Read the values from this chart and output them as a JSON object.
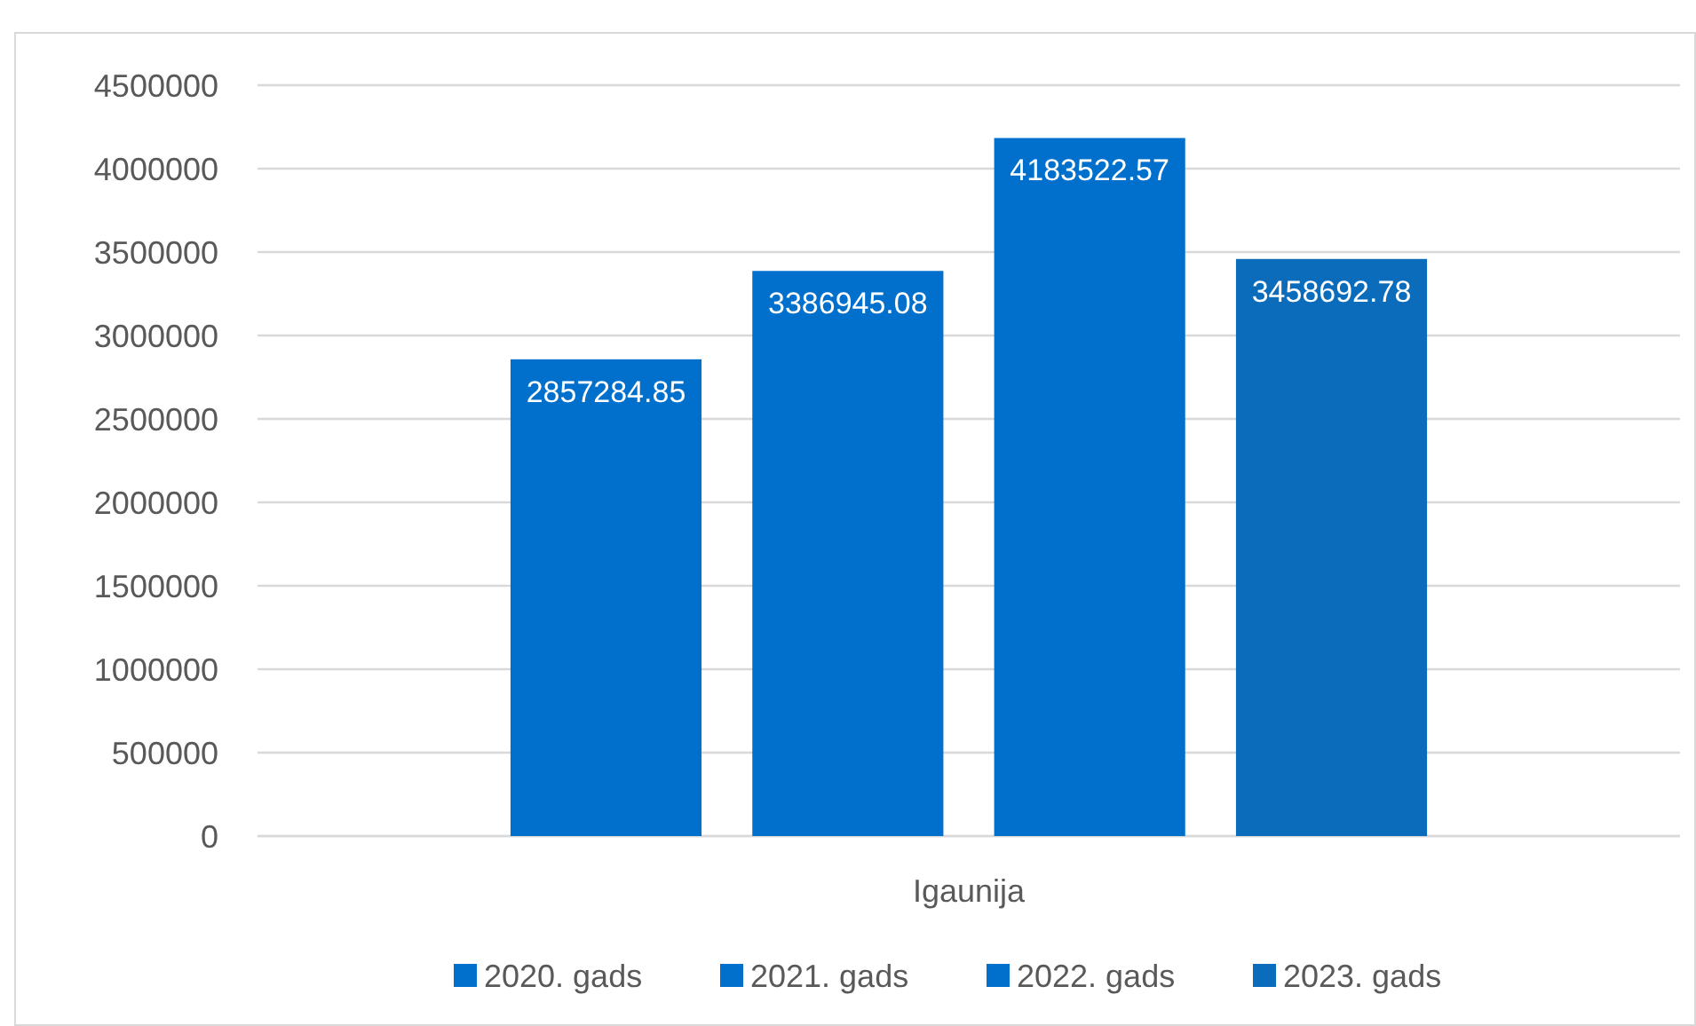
{
  "chart_data": {
    "type": "bar",
    "categories": [
      "Igaunija"
    ],
    "series": [
      {
        "name": "2020. gads",
        "color": "#0070cc",
        "values": [
          2857284.85
        ]
      },
      {
        "name": "2021. gads",
        "color": "#0070cc",
        "values": [
          3386945.08
        ]
      },
      {
        "name": "2022. gads",
        "color": "#0070cc",
        "values": [
          4183522.57
        ]
      },
      {
        "name": "2023. gads",
        "color": "#0b6cbb",
        "values": [
          3458692.78
        ]
      }
    ],
    "ylim": [
      0,
      4500000
    ],
    "yticks": [
      0,
      500000,
      1000000,
      1500000,
      2000000,
      2500000,
      3000000,
      3500000,
      4000000,
      4500000
    ],
    "grid": "y",
    "legend": "bottom",
    "data_labels": true
  }
}
